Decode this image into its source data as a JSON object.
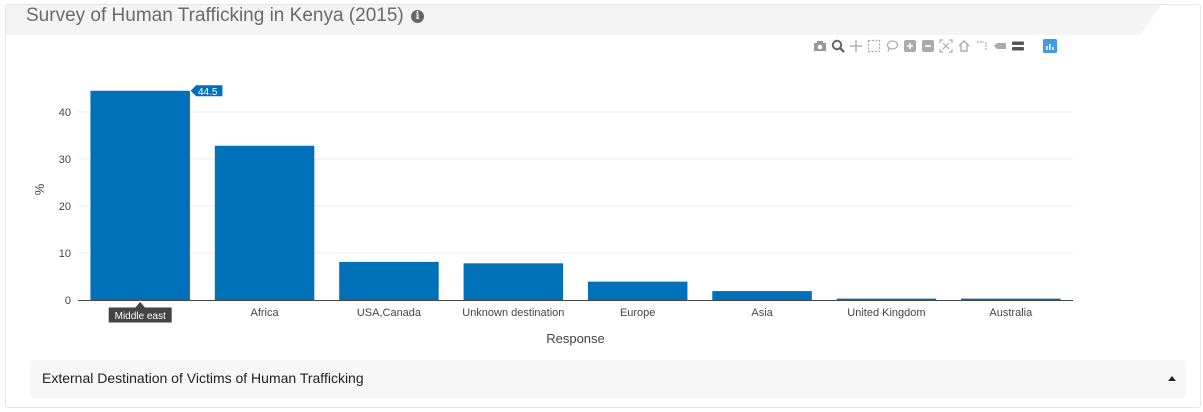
{
  "title": "Survey of Human Trafficking in Kenya (2015)",
  "info_icon": "i",
  "modebar": {
    "icons": [
      "camera-icon",
      "zoom-icon",
      "pan-icon",
      "box-select-icon",
      "lasso-icon",
      "zoom-in-icon",
      "zoom-out-icon",
      "autoscale-icon",
      "reset-axes-icon",
      "spike-lines-icon",
      "hover-closest-icon",
      "hover-compare-icon",
      "plotly-logo-icon"
    ]
  },
  "chart_data": {
    "type": "bar",
    "categories": [
      "Middle east",
      "Africa",
      "USA,Canada",
      "Unknown destination",
      "Europe",
      "Asia",
      "United Kingdom",
      "Australia"
    ],
    "values": [
      44.5,
      32.8,
      8.1,
      7.8,
      3.9,
      1.9,
      0.3,
      0.3
    ],
    "xlabel": "Response",
    "ylabel": "%",
    "ylim": [
      0,
      47
    ],
    "yticks": [
      0,
      10,
      20,
      30,
      40
    ],
    "grid": true,
    "bar_color": "#0070b8",
    "hover": {
      "value_label": "44.5",
      "category_label": "Middle east"
    }
  },
  "footer": {
    "label": "External Destination of Victims of Human Trafficking"
  }
}
